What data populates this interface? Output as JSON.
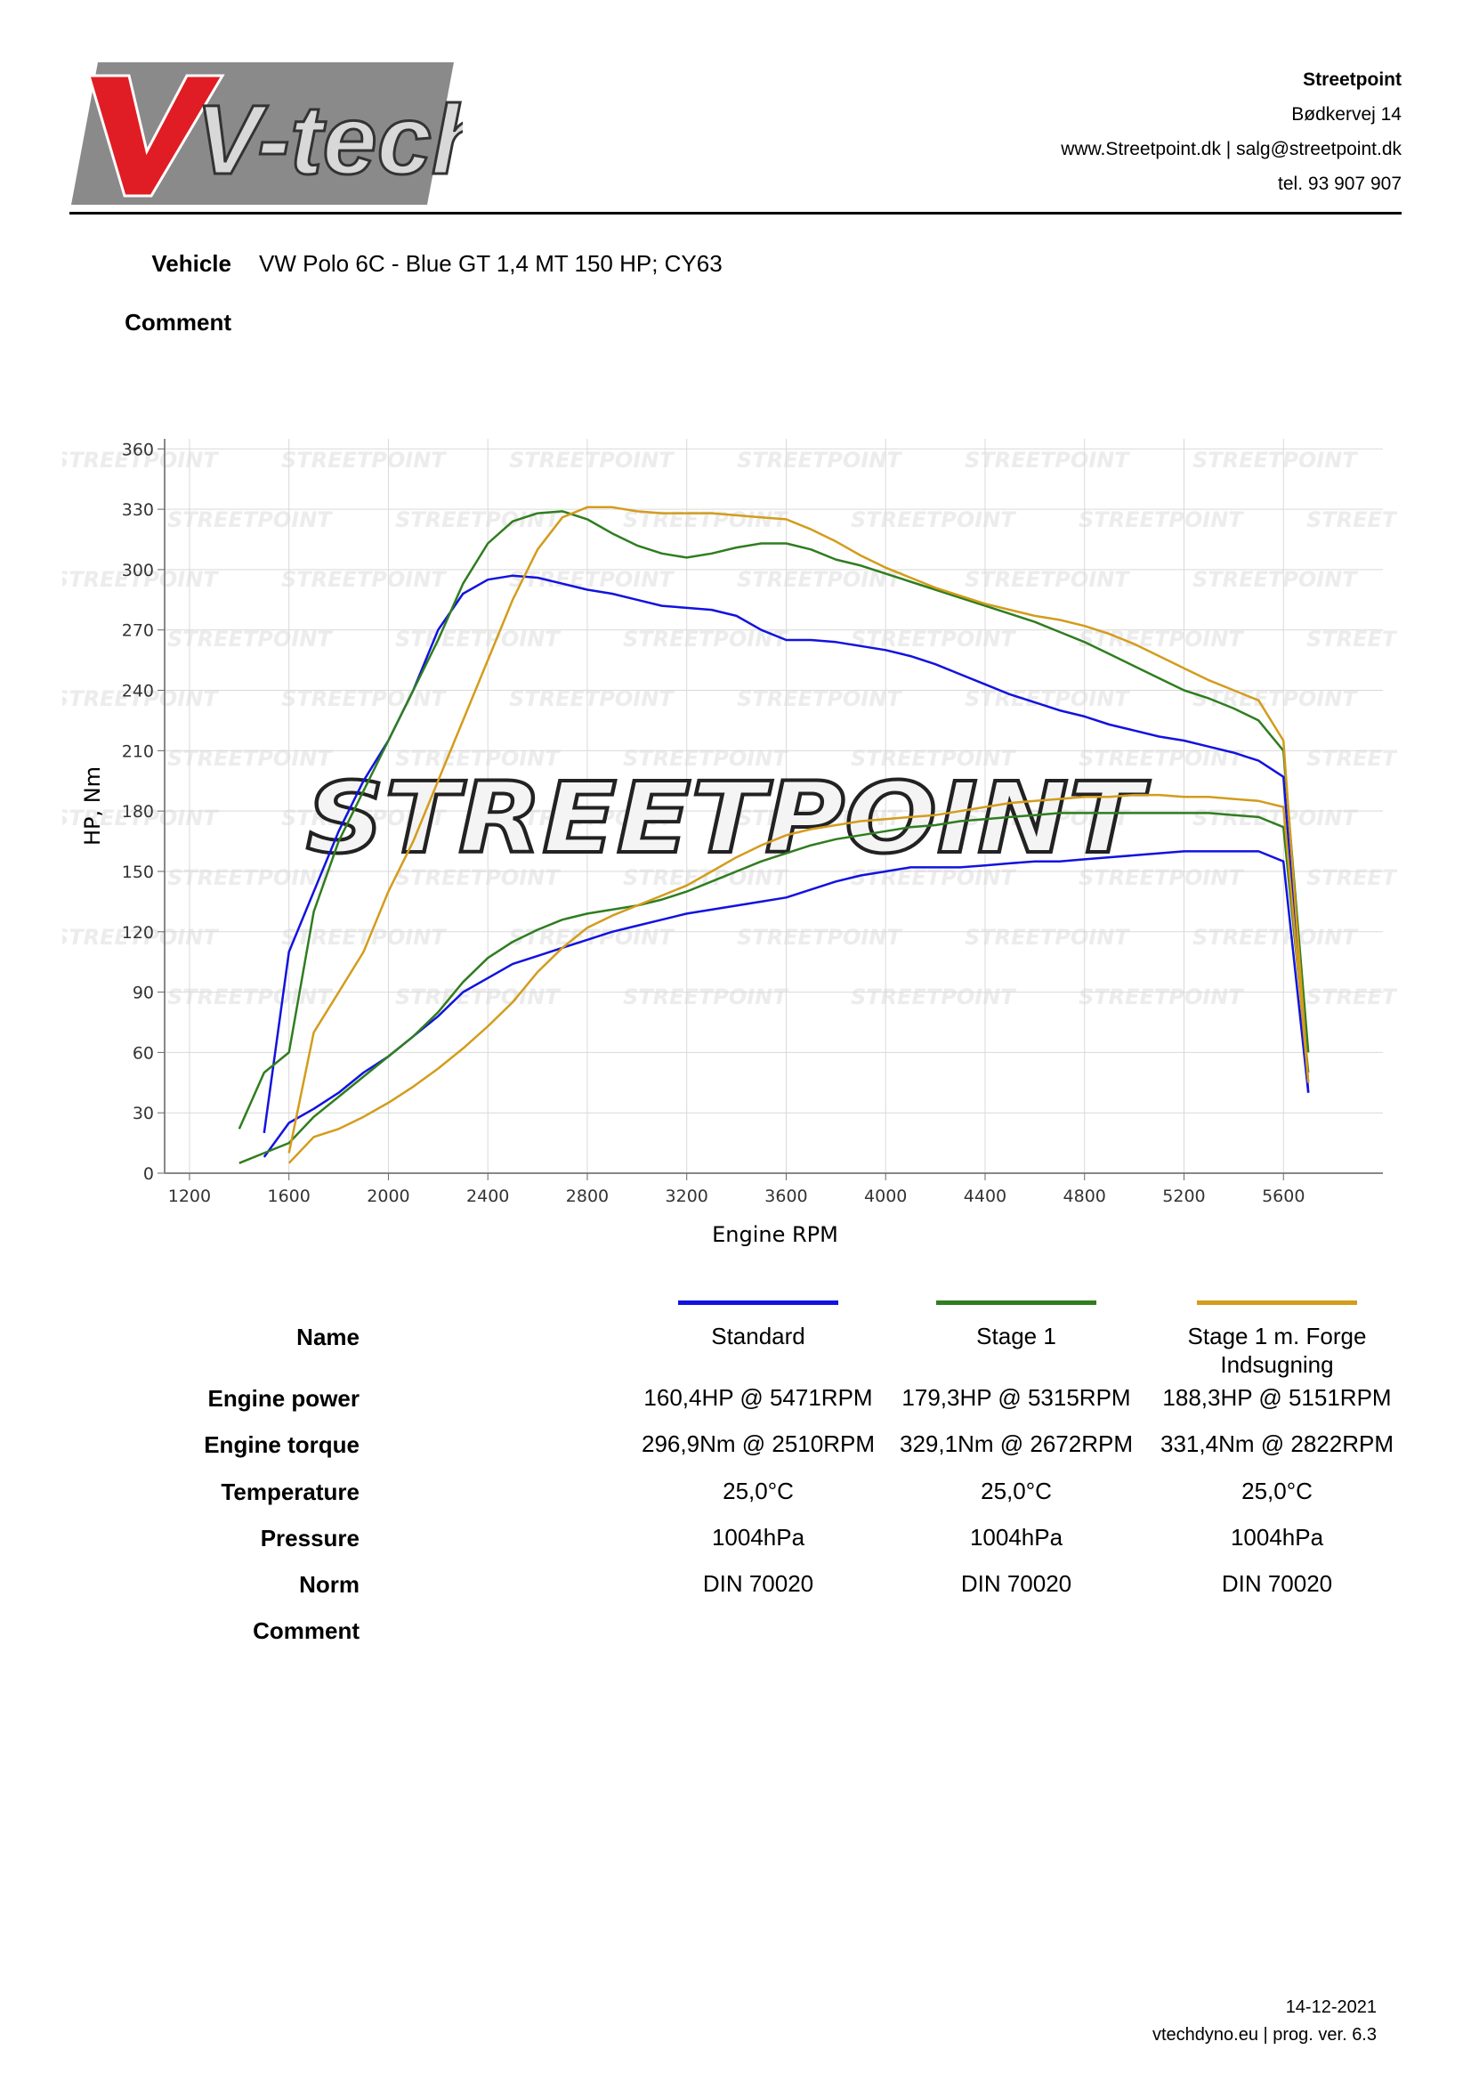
{
  "header": {
    "logo": "V-tech",
    "company": "Streetpoint",
    "lines": [
      "Bødkervej 14",
      "www.Streetpoint.dk | salg@streetpoint.dk",
      "tel. 93 907 907"
    ]
  },
  "vehicle": {
    "label": "Vehicle",
    "value": "VW Polo 6C - Blue GT 1,4 MT 150 HP; CY63"
  },
  "comment_label": "Comment",
  "chart_data": {
    "type": "line",
    "watermark": "STREETPOINT",
    "x_label": "Engine RPM",
    "y_label": "HP, Nm",
    "xlim": [
      1100,
      6000
    ],
    "xticks": [
      1200,
      1600,
      2000,
      2400,
      2800,
      3200,
      3600,
      4000,
      4400,
      4800,
      5200,
      5600
    ],
    "ylim": [
      0,
      365
    ],
    "yticks": [
      0,
      30,
      60,
      90,
      120,
      150,
      180,
      210,
      240,
      270,
      300,
      330,
      360
    ],
    "grid": true,
    "x": [
      1400,
      1500,
      1600,
      1700,
      1800,
      1900,
      2000,
      2100,
      2200,
      2300,
      2400,
      2500,
      2600,
      2700,
      2800,
      2900,
      3000,
      3100,
      3200,
      3300,
      3400,
      3500,
      3600,
      3700,
      3800,
      3900,
      4000,
      4100,
      4200,
      4300,
      4400,
      4500,
      4600,
      4700,
      4800,
      4900,
      5000,
      5100,
      5200,
      5300,
      5400,
      5500,
      5600,
      5700
    ],
    "series": [
      {
        "name": "Standard",
        "color": "#1212e0",
        "torque": [
          null,
          20,
          110,
          140,
          170,
          195,
          215,
          240,
          270,
          288,
          295,
          297,
          296,
          293,
          290,
          288,
          285,
          282,
          281,
          280,
          277,
          270,
          265,
          265,
          264,
          262,
          260,
          257,
          253,
          248,
          243,
          238,
          234,
          230,
          227,
          223,
          220,
          217,
          215,
          212,
          209,
          205,
          197,
          40
        ],
        "power": [
          null,
          8,
          25,
          32,
          40,
          50,
          58,
          68,
          78,
          90,
          97,
          104,
          108,
          112,
          116,
          120,
          123,
          126,
          129,
          131,
          133,
          135,
          137,
          141,
          145,
          148,
          150,
          152,
          152,
          152,
          153,
          154,
          155,
          155,
          156,
          157,
          158,
          159,
          160,
          160,
          160,
          160,
          155,
          40
        ]
      },
      {
        "name": "Stage 1",
        "color": "#2f7d1f",
        "torque": [
          22,
          50,
          60,
          130,
          165,
          190,
          215,
          240,
          265,
          293,
          313,
          324,
          328,
          329,
          325,
          318,
          312,
          308,
          306,
          308,
          311,
          313,
          313,
          310,
          305,
          302,
          298,
          294,
          290,
          286,
          282,
          278,
          274,
          269,
          264,
          258,
          252,
          246,
          240,
          236,
          231,
          225,
          210,
          60
        ],
        "power": [
          5,
          10,
          15,
          28,
          38,
          48,
          58,
          68,
          80,
          95,
          107,
          115,
          121,
          126,
          129,
          131,
          133,
          136,
          140,
          145,
          150,
          155,
          159,
          163,
          166,
          168,
          170,
          172,
          173,
          175,
          176,
          177,
          178,
          179,
          179,
          179,
          179,
          179,
          179,
          179,
          178,
          177,
          172,
          50
        ]
      },
      {
        "name": "Stage 1 m. Forge Indsugning",
        "color": "#d39c1c",
        "torque": [
          null,
          null,
          10,
          70,
          90,
          110,
          140,
          165,
          195,
          225,
          255,
          285,
          310,
          326,
          331,
          331,
          329,
          328,
          328,
          328,
          327,
          326,
          325,
          320,
          314,
          307,
          301,
          296,
          291,
          287,
          283,
          280,
          277,
          275,
          272,
          268,
          263,
          257,
          251,
          245,
          240,
          235,
          215,
          45
        ],
        "power": [
          null,
          null,
          5,
          18,
          22,
          28,
          35,
          43,
          52,
          62,
          73,
          85,
          100,
          112,
          122,
          128,
          133,
          138,
          143,
          150,
          157,
          163,
          168,
          171,
          173,
          175,
          176,
          177,
          178,
          180,
          182,
          184,
          185,
          186,
          187,
          187,
          188,
          188,
          187,
          187,
          186,
          185,
          182,
          45
        ]
      }
    ]
  },
  "table": {
    "name_label": "Name",
    "rows": [
      {
        "label": "Engine power",
        "values": [
          "160,4HP @ 5471RPM",
          "179,3HP @ 5315RPM",
          "188,3HP @ 5151RPM"
        ]
      },
      {
        "label": "Engine torque",
        "values": [
          "296,9Nm @ 2510RPM",
          "329,1Nm @ 2672RPM",
          "331,4Nm @ 2822RPM"
        ]
      },
      {
        "label": "Temperature",
        "values": [
          "25,0°C",
          "25,0°C",
          "25,0°C"
        ]
      },
      {
        "label": "Pressure",
        "values": [
          "1004hPa",
          "1004hPa",
          "1004hPa"
        ]
      },
      {
        "label": "Norm",
        "values": [
          "DIN 70020",
          "DIN 70020",
          "DIN 70020"
        ]
      },
      {
        "label": "Comment",
        "values": []
      }
    ]
  },
  "footer": {
    "date": "14-12-2021",
    "program": "vtechdyno.eu | prog. ver. 6.3"
  }
}
